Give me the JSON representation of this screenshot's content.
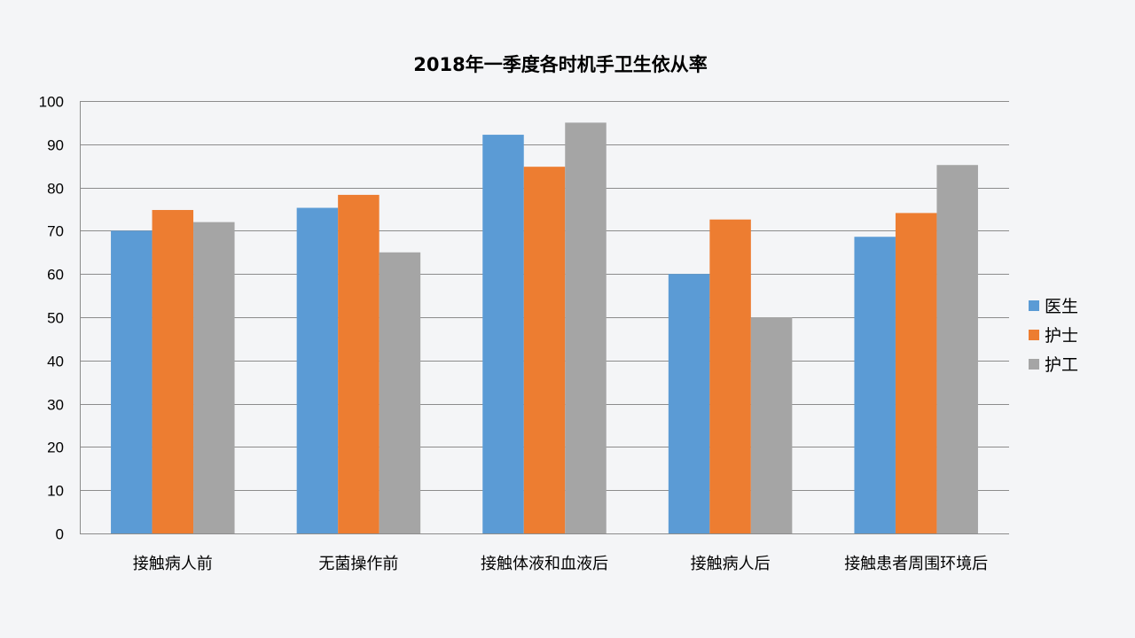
{
  "chart_data": {
    "type": "bar",
    "title": "2018年一季度各时机手卫生依从率",
    "xlabel": "",
    "ylabel": "",
    "categories": [
      "接触病人前",
      "无菌操作前",
      "接触体液和血液后",
      "接触病人后",
      "接触患者周围环境后"
    ],
    "ylim": [
      0,
      100
    ],
    "yticks": [
      0,
      10,
      20,
      30,
      40,
      50,
      60,
      70,
      80,
      90,
      100
    ],
    "grid": true,
    "legend_position": "right",
    "series": [
      {
        "name": "医生",
        "color": "#5b9bd5",
        "values": [
          70,
          75.3,
          92.2,
          60,
          68.6
        ]
      },
      {
        "name": "护士",
        "color": "#ed7d31",
        "values": [
          74.8,
          78.3,
          84.8,
          72.6,
          74.1
        ]
      },
      {
        "name": "护工",
        "color": "#a5a5a5",
        "values": [
          72,
          65,
          95,
          50,
          85.2
        ]
      }
    ]
  }
}
